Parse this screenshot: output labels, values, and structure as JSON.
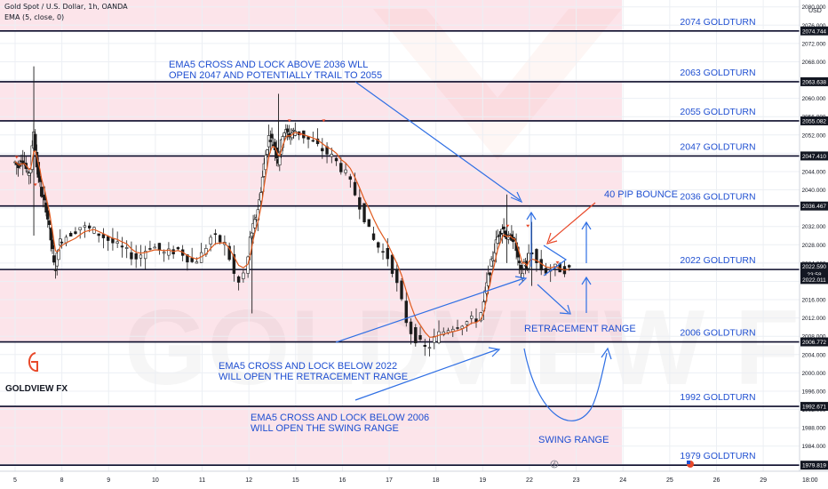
{
  "header": {
    "symbol_line": "Gold Spot / U.S. Dollar, 1h, OANDA",
    "indicator_line": "EMA (5, close, 0)"
  },
  "currency": "USD",
  "brand": {
    "name": "GOLDVIEW FX",
    "accent": "#e8492a"
  },
  "colors": {
    "level_label": "#1f4fd1",
    "annotation": "#1f4fd1",
    "band_fill": "#fce4ea",
    "up_candle": "#1b1b1b",
    "ema": "#e05a1e",
    "price_badge": "#131722"
  },
  "price_badges": {
    "current": "2022.590",
    "countdown": "23:58",
    "ema": "2022.011"
  },
  "chart_data": {
    "type": "candlestick",
    "title": "Gold Spot / U.S. Dollar, 1h, OANDA",
    "indicator": "EMA (5, close, 0)",
    "ylim": [
      1978.5,
      2081.5
    ],
    "y_ticks": [
      1980,
      1984,
      1988,
      1992,
      1996,
      2000,
      2004,
      2008,
      2012,
      2016,
      2020,
      2024,
      2028,
      2032,
      2036,
      2040,
      2044,
      2048,
      2052,
      2056,
      2060,
      2064,
      2068,
      2072,
      2076,
      2080
    ],
    "x_ticks": [
      {
        "label": "5",
        "x": 5
      },
      {
        "label": "8",
        "x": 8
      },
      {
        "label": "9",
        "x": 9
      },
      {
        "label": "10",
        "x": 10
      },
      {
        "label": "11",
        "x": 11
      },
      {
        "label": "12",
        "x": 12
      },
      {
        "label": "15",
        "x": 15
      },
      {
        "label": "16",
        "x": 16
      },
      {
        "label": "17",
        "x": 17
      },
      {
        "label": "18",
        "x": 18
      },
      {
        "label": "19",
        "x": 19
      },
      {
        "label": "22",
        "x": 22
      },
      {
        "label": "23",
        "x": 23
      },
      {
        "label": "24",
        "x": 24
      },
      {
        "label": "25",
        "x": 25
      },
      {
        "label": "26",
        "x": 26
      },
      {
        "label": "29",
        "x": 29
      },
      {
        "label": "18:00",
        "x": 30
      }
    ],
    "x_last_data": 22.85,
    "levels": [
      {
        "price": 2074.744,
        "label": "2074 GOLDTURN",
        "badge": "2074.744"
      },
      {
        "price": 2063.638,
        "label": "2063 GOLDTURN",
        "badge": "2063.638"
      },
      {
        "price": 2055.082,
        "label": "2055 GOLDTURN",
        "badge": "2055.082"
      },
      {
        "price": 2047.41,
        "label": "2047 GOLDTURN",
        "badge": "2047.410"
      },
      {
        "price": 2036.467,
        "label": "2036 GOLDTURN",
        "badge": "2036.467"
      },
      {
        "price": 2022.59,
        "label": "2022 GOLDTURN",
        "badge": ""
      },
      {
        "price": 2006.772,
        "label": "2006 GOLDTURN",
        "badge": "2006.772"
      },
      {
        "price": 1992.671,
        "label": "1992 GOLDTURN",
        "badge": "1992.671"
      },
      {
        "price": 1979.819,
        "label": "1979 GOLDTURN",
        "badge": "1979.819"
      }
    ],
    "bands": [
      [
        2074.744,
        2081.5
      ],
      [
        2055.082,
        2063.638
      ],
      [
        2036.467,
        2047.41
      ],
      [
        2006.772,
        2022.59
      ],
      [
        1979.819,
        1992.671
      ]
    ],
    "path": [
      [
        5,
        2046
      ],
      [
        5.2,
        2045
      ],
      [
        5.4,
        2047
      ],
      [
        5.6,
        2046
      ],
      [
        5.8,
        2043
      ],
      [
        6,
        2045
      ],
      [
        6.2,
        2053
      ],
      [
        6.4,
        2045
      ],
      [
        6.7,
        2039
      ],
      [
        7,
        2036
      ],
      [
        7.3,
        2029
      ],
      [
        7.55,
        2022
      ],
      [
        7.8,
        2028
      ],
      [
        8.1,
        2030
      ],
      [
        8.4,
        2032
      ],
      [
        8.7,
        2031
      ],
      [
        9,
        2029
      ],
      [
        9.3,
        2027
      ],
      [
        9.6,
        2025
      ],
      [
        9.9,
        2028
      ],
      [
        10.2,
        2026
      ],
      [
        10.5,
        2027
      ],
      [
        10.8,
        2024
      ],
      [
        11,
        2026
      ],
      [
        11.2,
        2030
      ],
      [
        11.5,
        2028
      ],
      [
        11.75,
        2019
      ],
      [
        11.9,
        2022
      ],
      [
        12.1,
        2030
      ],
      [
        12.4,
        2033
      ],
      [
        12.7,
        2038
      ],
      [
        13,
        2046
      ],
      [
        13.3,
        2052
      ],
      [
        13.6,
        2050
      ],
      [
        13.9,
        2046
      ],
      [
        14.2,
        2053
      ],
      [
        14.6,
        2052
      ],
      [
        15,
        2053
      ],
      [
        15.4,
        2050
      ],
      [
        15.8,
        2047
      ],
      [
        16.1,
        2043
      ],
      [
        16.4,
        2036
      ],
      [
        16.6,
        2030
      ],
      [
        16.8,
        2027
      ],
      [
        17,
        2025
      ],
      [
        17.2,
        2018
      ],
      [
        17.4,
        2010
      ],
      [
        17.6,
        2007
      ],
      [
        17.8,
        2005
      ],
      [
        18,
        2008
      ],
      [
        18.3,
        2010
      ],
      [
        18.6,
        2011
      ],
      [
        18.9,
        2012
      ],
      [
        19.1,
        2016
      ],
      [
        19.3,
        2020
      ],
      [
        19.5,
        2023
      ],
      [
        19.7,
        2026
      ],
      [
        19.9,
        2029
      ],
      [
        20.1,
        2031
      ],
      [
        20.3,
        2032
      ],
      [
        20.5,
        2030
      ],
      [
        20.7,
        2029
      ],
      [
        20.9,
        2030
      ],
      [
        21.1,
        2028
      ],
      [
        21.3,
        2024
      ],
      [
        21.5,
        2021
      ],
      [
        21.7,
        2025
      ],
      [
        21.85,
        2022
      ],
      [
        22,
        2028
      ],
      [
        22.15,
        2024
      ],
      [
        22.3,
        2022
      ],
      [
        22.5,
        2023
      ],
      [
        22.7,
        2022.6
      ],
      [
        22.85,
        2022.59
      ]
    ],
    "spikes": [
      [
        6.2,
        2067,
        2030
      ],
      [
        12.2,
        2030,
        2013
      ],
      [
        13.9,
        2061,
        2048
      ],
      [
        20.55,
        2039,
        2024
      ],
      [
        22.05,
        2033,
        2019
      ]
    ],
    "arrow_marks": [
      [
        5.1,
        2047
      ],
      [
        6.3,
        2041
      ],
      [
        14.6,
        2055
      ],
      [
        15.1,
        2052
      ],
      [
        15.6,
        2055
      ],
      [
        20.6,
        2032
      ],
      [
        21.9,
        2032
      ],
      [
        22.6,
        2024
      ]
    ]
  },
  "annotations": {
    "ema_above_line1": "EMA5 CROSS AND LOCK ABOVE 2036 WLL",
    "ema_above_line2": "OPEN 2047 AND POTENTIALLY TRAIL TO 2055",
    "pip_bounce": "40 PIP BOUNCE",
    "retracement_range": "RETRACEMENT RANGE",
    "ema_below_2022_line1": "EMA5 CROSS AND LOCK BELOW 2022",
    "ema_below_2022_line2": "WILL OPEN THE RETRACEMENT RANGE",
    "ema_below_2006_line1": "EMA5 CROSS AND LOCK BELOW 2006",
    "ema_below_2006_line2": "WILL OPEN THE SWING RANGE",
    "swing_range": "SWING RANGE"
  }
}
